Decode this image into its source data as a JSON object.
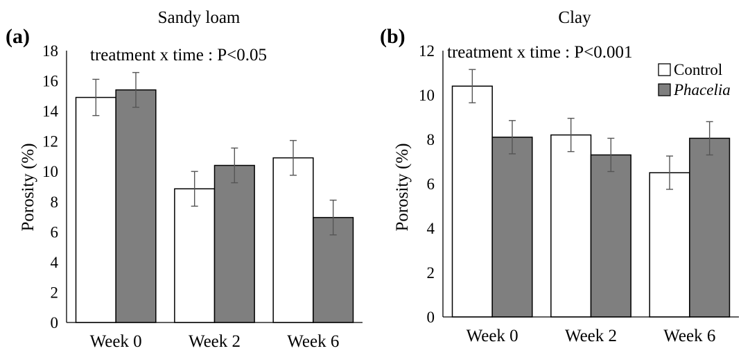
{
  "chart_data": [
    {
      "type": "bar",
      "panel_label": "(a)",
      "title": "Sandy loam",
      "annotation": "treatment x time : P<0.05",
      "xlabel": "",
      "ylabel": "Porosity (%)",
      "ylim": [
        0,
        18
      ],
      "yticks": [
        0,
        2,
        4,
        6,
        8,
        10,
        12,
        14,
        16,
        18
      ],
      "categories": [
        "Week 0",
        "Week 2",
        "Week 6"
      ],
      "series": [
        {
          "name": "Control",
          "color": "#ffffff",
          "values": [
            14.9,
            8.85,
            10.9
          ],
          "errors": [
            1.2,
            1.15,
            1.15
          ]
        },
        {
          "name": "Phacelia",
          "color": "#7f7f7f",
          "values": [
            15.4,
            10.4,
            6.95
          ],
          "errors": [
            1.15,
            1.15,
            1.15
          ]
        }
      ],
      "legend": "none",
      "grid": false
    },
    {
      "type": "bar",
      "panel_label": "(b)",
      "title": "Clay",
      "annotation": "treatment x time : P<0.001",
      "xlabel": "",
      "ylabel": "Porosity (%)",
      "ylim": [
        0,
        12
      ],
      "yticks": [
        0,
        2,
        4,
        6,
        8,
        10,
        12
      ],
      "categories": [
        "Week 0",
        "Week 2",
        "Week 6"
      ],
      "series": [
        {
          "name": "Control",
          "color": "#ffffff",
          "values": [
            10.4,
            8.2,
            6.5
          ],
          "errors": [
            0.75,
            0.75,
            0.75
          ]
        },
        {
          "name": "Phacelia",
          "color": "#7f7f7f",
          "values": [
            8.1,
            7.3,
            8.05
          ],
          "errors": [
            0.75,
            0.75,
            0.75
          ]
        }
      ],
      "legend": "top-right",
      "grid": false
    }
  ]
}
